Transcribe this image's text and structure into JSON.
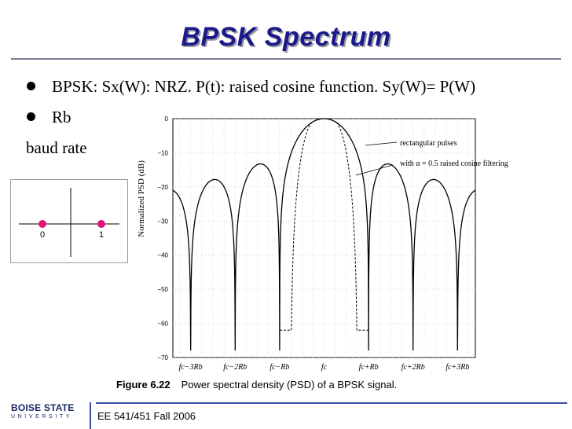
{
  "slide": {
    "title": "BPSK Spectrum",
    "bullets": [
      "BPSK: Sx(W): NRZ. P(t): raised cosine function. Sy(W)= P(W)",
      "Rb"
    ],
    "body_line": "baud rate",
    "footer": "EE 541/451 Fall 2006",
    "logo_line1": "BOISE STATE",
    "logo_line2": "UNIVERSITY",
    "colors": {
      "title": "#1a1a8a",
      "title_shadow": "#9a9aa0",
      "rule": "#3c4ea0",
      "constellation_point": "#e0157a"
    }
  },
  "constellation": {
    "points": [
      {
        "label": "0",
        "value": -1
      },
      {
        "label": "1",
        "value": 1
      }
    ]
  },
  "figure": {
    "caption_label": "Figure 6.22",
    "caption_text": "Power spectral density (PSD) of a BPSK signal."
  },
  "chart_data": {
    "type": "line",
    "ylabel": "Normalized PSD (dB)",
    "ylim": [
      -70,
      0
    ],
    "y_ticks": [
      "0",
      "−10",
      "−20",
      "−30",
      "−40",
      "−50",
      "−60",
      "−70"
    ],
    "x_ticks": [
      {
        "label": "fc−3Rb",
        "value": -3
      },
      {
        "label": "fc−2Rb",
        "value": -2
      },
      {
        "label": "fc−Rb",
        "value": -1
      },
      {
        "label": "fc",
        "value": 0
      },
      {
        "label": "fc+Rb",
        "value": 1
      },
      {
        "label": "fc+2Rb",
        "value": 2
      },
      {
        "label": "fc+3Rb",
        "value": 3
      }
    ],
    "grid": true,
    "annotations": [
      "rectangular pulses",
      "with α = 0.5 raised cosine filtering"
    ],
    "series": [
      {
        "name": "rectangular pulses",
        "points": [
          [
            -3.4,
            -23
          ],
          [
            -3,
            -70
          ],
          [
            -2.5,
            -20
          ],
          [
            -2,
            -70
          ],
          [
            -1.5,
            -14
          ],
          [
            -1,
            -70
          ],
          [
            -0.5,
            -4
          ],
          [
            0,
            0
          ],
          [
            0.5,
            -4
          ],
          [
            1,
            -70
          ],
          [
            1.5,
            -14
          ],
          [
            2,
            -70
          ],
          [
            2.5,
            -20
          ],
          [
            3,
            -70
          ],
          [
            3.4,
            -23
          ]
        ]
      },
      {
        "name": "with α = 0.5 raised cosine filtering",
        "points": [
          [
            -1,
            -60
          ],
          [
            -0.75,
            -10
          ],
          [
            -0.5,
            -2
          ],
          [
            0,
            0
          ],
          [
            0.5,
            -2
          ],
          [
            0.75,
            -10
          ],
          [
            1,
            -60
          ]
        ]
      }
    ]
  }
}
